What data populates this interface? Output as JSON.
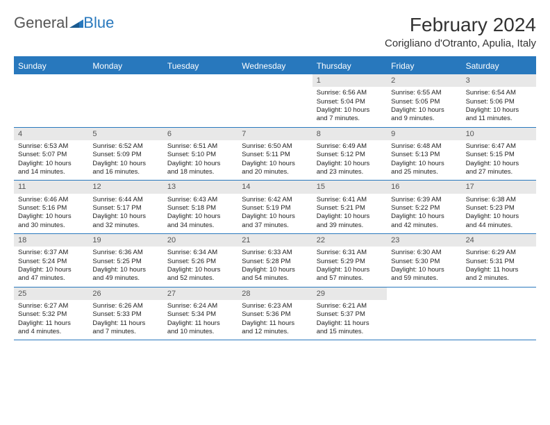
{
  "logo": {
    "text1": "General",
    "text2": "Blue"
  },
  "title": "February 2024",
  "location": "Corigliano d'Otranto, Apulia, Italy",
  "header_bg": "#2878bd",
  "day_names": [
    "Sunday",
    "Monday",
    "Tuesday",
    "Wednesday",
    "Thursday",
    "Friday",
    "Saturday"
  ],
  "weeks": [
    [
      {
        "n": "",
        "lines": []
      },
      {
        "n": "",
        "lines": []
      },
      {
        "n": "",
        "lines": []
      },
      {
        "n": "",
        "lines": []
      },
      {
        "n": "1",
        "lines": [
          "Sunrise: 6:56 AM",
          "Sunset: 5:04 PM",
          "Daylight: 10 hours",
          "and 7 minutes."
        ]
      },
      {
        "n": "2",
        "lines": [
          "Sunrise: 6:55 AM",
          "Sunset: 5:05 PM",
          "Daylight: 10 hours",
          "and 9 minutes."
        ]
      },
      {
        "n": "3",
        "lines": [
          "Sunrise: 6:54 AM",
          "Sunset: 5:06 PM",
          "Daylight: 10 hours",
          "and 11 minutes."
        ]
      }
    ],
    [
      {
        "n": "4",
        "lines": [
          "Sunrise: 6:53 AM",
          "Sunset: 5:07 PM",
          "Daylight: 10 hours",
          "and 14 minutes."
        ]
      },
      {
        "n": "5",
        "lines": [
          "Sunrise: 6:52 AM",
          "Sunset: 5:09 PM",
          "Daylight: 10 hours",
          "and 16 minutes."
        ]
      },
      {
        "n": "6",
        "lines": [
          "Sunrise: 6:51 AM",
          "Sunset: 5:10 PM",
          "Daylight: 10 hours",
          "and 18 minutes."
        ]
      },
      {
        "n": "7",
        "lines": [
          "Sunrise: 6:50 AM",
          "Sunset: 5:11 PM",
          "Daylight: 10 hours",
          "and 20 minutes."
        ]
      },
      {
        "n": "8",
        "lines": [
          "Sunrise: 6:49 AM",
          "Sunset: 5:12 PM",
          "Daylight: 10 hours",
          "and 23 minutes."
        ]
      },
      {
        "n": "9",
        "lines": [
          "Sunrise: 6:48 AM",
          "Sunset: 5:13 PM",
          "Daylight: 10 hours",
          "and 25 minutes."
        ]
      },
      {
        "n": "10",
        "lines": [
          "Sunrise: 6:47 AM",
          "Sunset: 5:15 PM",
          "Daylight: 10 hours",
          "and 27 minutes."
        ]
      }
    ],
    [
      {
        "n": "11",
        "lines": [
          "Sunrise: 6:46 AM",
          "Sunset: 5:16 PM",
          "Daylight: 10 hours",
          "and 30 minutes."
        ]
      },
      {
        "n": "12",
        "lines": [
          "Sunrise: 6:44 AM",
          "Sunset: 5:17 PM",
          "Daylight: 10 hours",
          "and 32 minutes."
        ]
      },
      {
        "n": "13",
        "lines": [
          "Sunrise: 6:43 AM",
          "Sunset: 5:18 PM",
          "Daylight: 10 hours",
          "and 34 minutes."
        ]
      },
      {
        "n": "14",
        "lines": [
          "Sunrise: 6:42 AM",
          "Sunset: 5:19 PM",
          "Daylight: 10 hours",
          "and 37 minutes."
        ]
      },
      {
        "n": "15",
        "lines": [
          "Sunrise: 6:41 AM",
          "Sunset: 5:21 PM",
          "Daylight: 10 hours",
          "and 39 minutes."
        ]
      },
      {
        "n": "16",
        "lines": [
          "Sunrise: 6:39 AM",
          "Sunset: 5:22 PM",
          "Daylight: 10 hours",
          "and 42 minutes."
        ]
      },
      {
        "n": "17",
        "lines": [
          "Sunrise: 6:38 AM",
          "Sunset: 5:23 PM",
          "Daylight: 10 hours",
          "and 44 minutes."
        ]
      }
    ],
    [
      {
        "n": "18",
        "lines": [
          "Sunrise: 6:37 AM",
          "Sunset: 5:24 PM",
          "Daylight: 10 hours",
          "and 47 minutes."
        ]
      },
      {
        "n": "19",
        "lines": [
          "Sunrise: 6:36 AM",
          "Sunset: 5:25 PM",
          "Daylight: 10 hours",
          "and 49 minutes."
        ]
      },
      {
        "n": "20",
        "lines": [
          "Sunrise: 6:34 AM",
          "Sunset: 5:26 PM",
          "Daylight: 10 hours",
          "and 52 minutes."
        ]
      },
      {
        "n": "21",
        "lines": [
          "Sunrise: 6:33 AM",
          "Sunset: 5:28 PM",
          "Daylight: 10 hours",
          "and 54 minutes."
        ]
      },
      {
        "n": "22",
        "lines": [
          "Sunrise: 6:31 AM",
          "Sunset: 5:29 PM",
          "Daylight: 10 hours",
          "and 57 minutes."
        ]
      },
      {
        "n": "23",
        "lines": [
          "Sunrise: 6:30 AM",
          "Sunset: 5:30 PM",
          "Daylight: 10 hours",
          "and 59 minutes."
        ]
      },
      {
        "n": "24",
        "lines": [
          "Sunrise: 6:29 AM",
          "Sunset: 5:31 PM",
          "Daylight: 11 hours",
          "and 2 minutes."
        ]
      }
    ],
    [
      {
        "n": "25",
        "lines": [
          "Sunrise: 6:27 AM",
          "Sunset: 5:32 PM",
          "Daylight: 11 hours",
          "and 4 minutes."
        ]
      },
      {
        "n": "26",
        "lines": [
          "Sunrise: 6:26 AM",
          "Sunset: 5:33 PM",
          "Daylight: 11 hours",
          "and 7 minutes."
        ]
      },
      {
        "n": "27",
        "lines": [
          "Sunrise: 6:24 AM",
          "Sunset: 5:34 PM",
          "Daylight: 11 hours",
          "and 10 minutes."
        ]
      },
      {
        "n": "28",
        "lines": [
          "Sunrise: 6:23 AM",
          "Sunset: 5:36 PM",
          "Daylight: 11 hours",
          "and 12 minutes."
        ]
      },
      {
        "n": "29",
        "lines": [
          "Sunrise: 6:21 AM",
          "Sunset: 5:37 PM",
          "Daylight: 11 hours",
          "and 15 minutes."
        ]
      },
      {
        "n": "",
        "lines": []
      },
      {
        "n": "",
        "lines": []
      }
    ]
  ]
}
